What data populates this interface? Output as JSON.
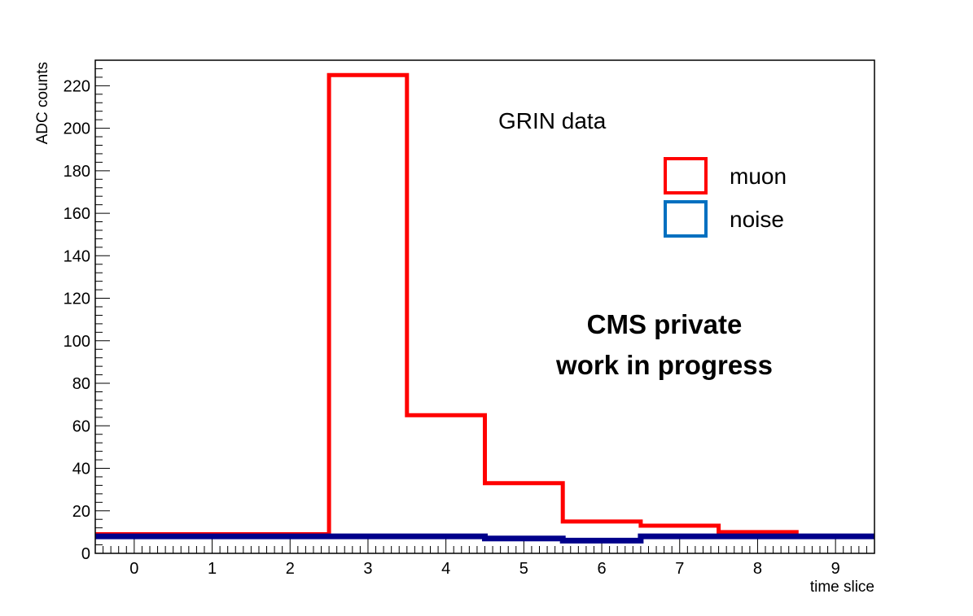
{
  "chart_data": {
    "type": "histogram",
    "title": "",
    "xlabel": "time slice",
    "ylabel": "ADC counts",
    "xlim": [
      -0.5,
      9.5
    ],
    "ylim": [
      0,
      232
    ],
    "x_ticks": [
      0,
      1,
      2,
      3,
      4,
      5,
      6,
      7,
      8,
      9
    ],
    "y_ticks": [
      0,
      20,
      40,
      60,
      80,
      100,
      120,
      140,
      160,
      180,
      200,
      220
    ],
    "bin_edges": [
      -0.5,
      0.5,
      1.5,
      2.5,
      3.5,
      4.5,
      5.5,
      6.5,
      7.5,
      8.5,
      9.5
    ],
    "series": [
      {
        "name": "muon",
        "color": "#ff0000",
        "values": [
          9,
          9,
          9,
          225,
          65,
          33,
          15,
          13,
          10,
          8
        ]
      },
      {
        "name": "noise",
        "color": "#00008b",
        "values": [
          8,
          8,
          8,
          8,
          8,
          7,
          6,
          8,
          8,
          8
        ]
      }
    ],
    "legend": {
      "placement": "top-right",
      "entries": [
        {
          "label": "muon",
          "color": "#ff0000"
        },
        {
          "label": "noise",
          "color": "#0070c0"
        }
      ]
    },
    "annotations": {
      "data_label": "GRIN data",
      "watermark_line1": "CMS private",
      "watermark_line2": "work in progress"
    },
    "grid": false
  }
}
